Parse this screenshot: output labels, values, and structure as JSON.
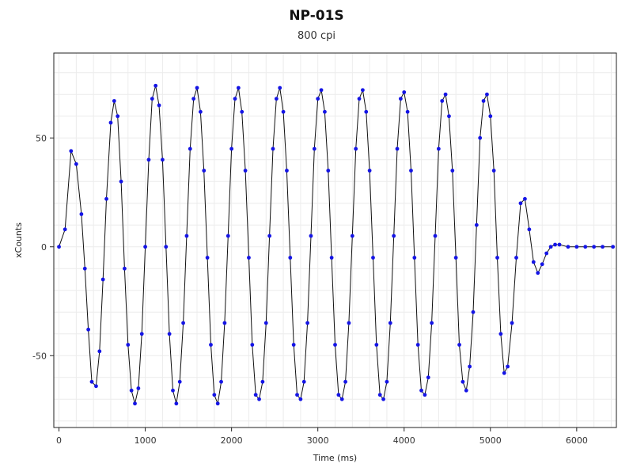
{
  "chart_data": {
    "type": "line",
    "title": "NP-01S",
    "subtitle": "800 cpi",
    "xlabel": "Time (ms)",
    "ylabel": "xCounts",
    "xlim": [
      -60,
      6460
    ],
    "ylim": [
      -83,
      89
    ],
    "xticks": [
      0,
      1000,
      2000,
      3000,
      4000,
      5000,
      6000
    ],
    "yticks": [
      -50,
      0,
      50
    ],
    "grid": true,
    "colors": {
      "points": "#1414e6",
      "line": "#101010",
      "grid": "#ececec"
    },
    "series": [
      {
        "x": [
          0,
          70,
          140,
          200,
          260,
          300,
          340,
          380,
          430,
          470,
          510,
          550,
          600,
          640,
          680,
          720,
          760,
          800,
          840,
          880,
          920,
          960,
          1000,
          1040,
          1080,
          1120,
          1160,
          1200,
          1240,
          1280,
          1320,
          1360,
          1400,
          1440,
          1480,
          1520,
          1560,
          1600,
          1640,
          1680,
          1720,
          1760,
          1800,
          1840,
          1880,
          1920,
          1960,
          2000,
          2040,
          2080,
          2120,
          2160,
          2200,
          2240,
          2280,
          2320,
          2360,
          2400,
          2440,
          2480,
          2520,
          2560,
          2600,
          2640,
          2680,
          2720,
          2760,
          2800,
          2840,
          2880,
          2920,
          2960,
          3000,
          3040,
          3080,
          3120,
          3160,
          3200,
          3240,
          3280,
          3320,
          3360,
          3400,
          3440,
          3480,
          3520,
          3560,
          3600,
          3640,
          3680,
          3720,
          3760,
          3800,
          3840,
          3880,
          3920,
          3960,
          4000,
          4040,
          4080,
          4120,
          4160,
          4200,
          4240,
          4280,
          4320,
          4360,
          4400,
          4440,
          4480,
          4520,
          4560,
          4600,
          4640,
          4680,
          4720,
          4760,
          4800,
          4840,
          4880,
          4920,
          4960,
          5000,
          5040,
          5080,
          5120,
          5160,
          5200,
          5250,
          5300,
          5350,
          5400,
          5450,
          5500,
          5550,
          5600,
          5650,
          5700,
          5750,
          5800,
          5900,
          6000,
          6100,
          6200,
          6300,
          6420
        ],
        "values": [
          0,
          8,
          44,
          38,
          15,
          -10,
          -38,
          -62,
          -64,
          -48,
          -15,
          22,
          57,
          67,
          60,
          30,
          -10,
          -45,
          -66,
          -72,
          -65,
          -40,
          0,
          40,
          68,
          74,
          65,
          40,
          0,
          -40,
          -66,
          -72,
          -62,
          -35,
          5,
          45,
          68,
          73,
          62,
          35,
          -5,
          -45,
          -68,
          -72,
          -62,
          -35,
          5,
          45,
          68,
          73,
          62,
          35,
          -5,
          -45,
          -68,
          -70,
          -62,
          -35,
          5,
          45,
          68,
          73,
          62,
          35,
          -5,
          -45,
          -68,
          -70,
          -62,
          -35,
          5,
          45,
          68,
          72,
          62,
          35,
          -5,
          -45,
          -68,
          -70,
          -62,
          -35,
          5,
          45,
          68,
          72,
          62,
          35,
          -5,
          -45,
          -68,
          -70,
          -62,
          -35,
          5,
          45,
          68,
          71,
          62,
          35,
          -5,
          -45,
          -66,
          -68,
          -60,
          -35,
          5,
          45,
          67,
          70,
          60,
          35,
          -5,
          -45,
          -62,
          -66,
          -55,
          -30,
          10,
          50,
          67,
          70,
          60,
          35,
          -5,
          -40,
          -58,
          -55,
          -35,
          -5,
          20,
          22,
          8,
          -7,
          -12,
          -8,
          -3,
          0,
          1,
          1,
          0,
          0,
          0,
          0,
          0,
          0
        ]
      }
    ]
  }
}
